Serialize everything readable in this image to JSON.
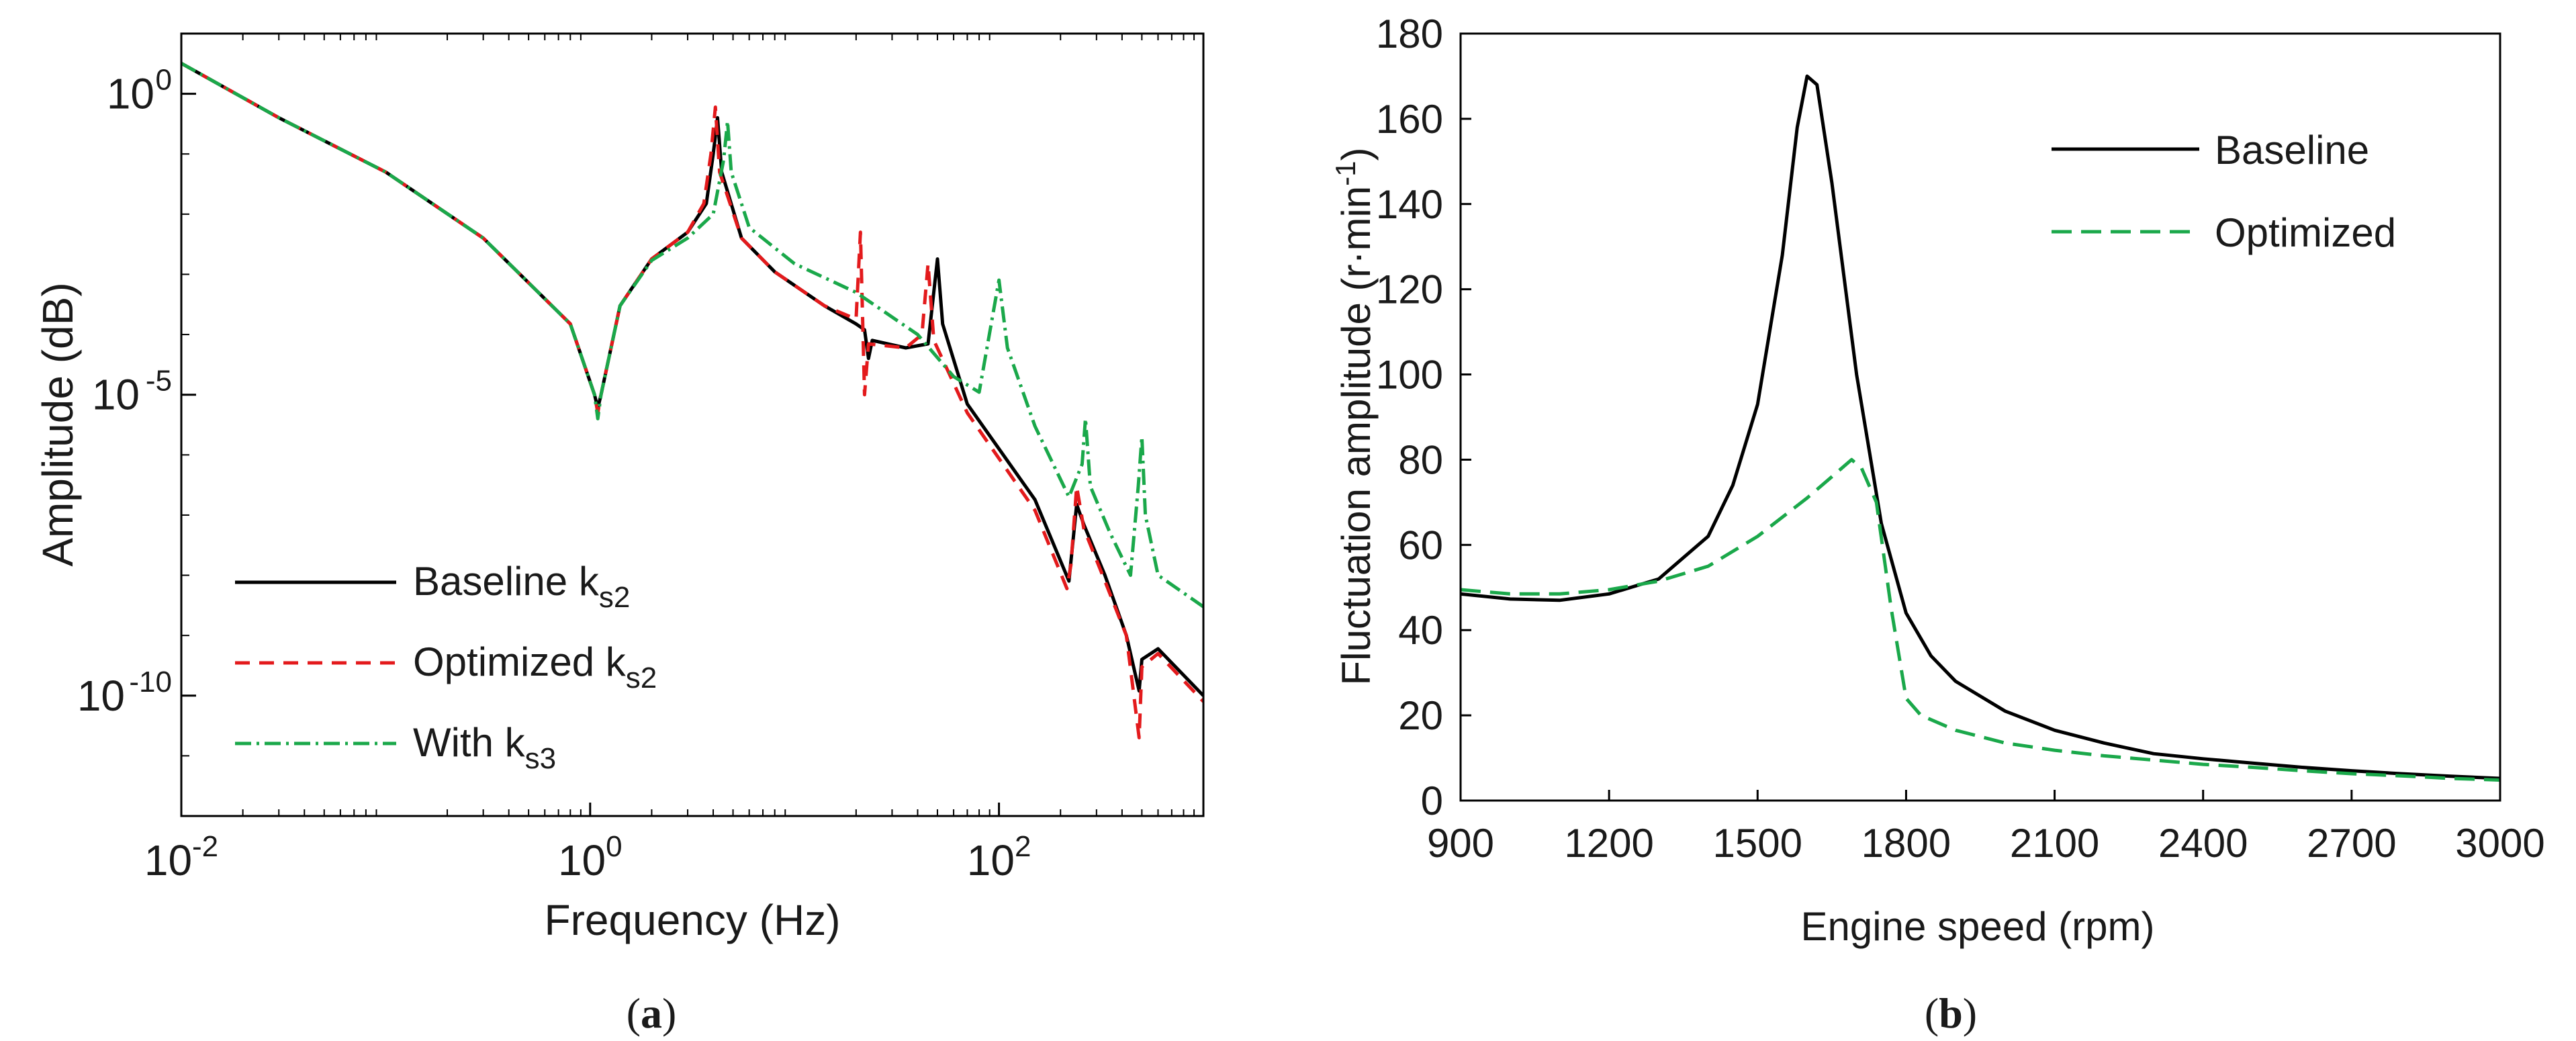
{
  "chart_data": [
    {
      "type": "line",
      "panel_label": {
        "open": "(",
        "letter": "a",
        "close": ")"
      },
      "xlabel": "Frequency (Hz)",
      "ylabel": "Amplitude (dB)",
      "xscale": "log",
      "yscale": "log",
      "xlim": [
        0.01,
        1000
      ],
      "ylim": [
        1e-12,
        10
      ],
      "xticks": [
        {
          "value": 0.01,
          "base": "10",
          "exp": "-2"
        },
        {
          "value": 1,
          "base": "10",
          "exp": "0"
        },
        {
          "value": 100,
          "base": "10",
          "exp": "2"
        }
      ],
      "yticks": [
        {
          "value": 1e-10,
          "base": "10",
          "exp": "-10"
        },
        {
          "value": 1e-05,
          "base": "10",
          "exp": "-5"
        },
        {
          "value": 1,
          "base": "10",
          "exp": "0"
        }
      ],
      "legend_position": "bottom-left",
      "series": [
        {
          "name": "Baseline k",
          "sub": "s2",
          "color": "#000000",
          "dash": "",
          "points": [
            [
              0.01,
              3.2
            ],
            [
              0.03,
              0.4
            ],
            [
              0.1,
              0.05
            ],
            [
              0.3,
              0.004
            ],
            [
              0.8,
              0.00015
            ],
            [
              1.05,
              1e-05
            ],
            [
              1.09,
              6e-06
            ],
            [
              1.13,
              1e-05
            ],
            [
              1.4,
              0.0003
            ],
            [
              2,
              0.0018
            ],
            [
              3,
              0.005
            ],
            [
              3.7,
              0.015
            ],
            [
              4.0,
              0.1
            ],
            [
              4.2,
              0.4
            ],
            [
              4.4,
              0.05
            ],
            [
              5.5,
              0.004
            ],
            [
              8,
              0.0011
            ],
            [
              14,
              0.0003
            ],
            [
              20,
              0.00015
            ],
            [
              22,
              0.00012
            ],
            [
              23,
              4e-05
            ],
            [
              24,
              8e-05
            ],
            [
              35,
              6e-05
            ],
            [
              45,
              7e-05
            ],
            [
              50,
              0.0018
            ],
            [
              53,
              0.00015
            ],
            [
              70,
              7e-06
            ],
            [
              150,
              1.8e-07
            ],
            [
              220,
              8e-09
            ],
            [
              240,
              1.5e-07
            ],
            [
              260,
              7e-08
            ],
            [
              330,
              1e-08
            ],
            [
              420,
              1e-09
            ],
            [
              485,
              1.2e-10
            ],
            [
              500,
              4e-10
            ],
            [
              600,
              6e-10
            ],
            [
              1000,
              1e-10
            ]
          ]
        },
        {
          "name": "Optimized k",
          "sub": "s2",
          "color": "#e31a1c",
          "dash": "22 14",
          "points": [
            [
              0.01,
              3.2
            ],
            [
              0.03,
              0.4
            ],
            [
              0.1,
              0.05
            ],
            [
              0.3,
              0.004
            ],
            [
              0.8,
              0.00015
            ],
            [
              1.05,
              1e-05
            ],
            [
              1.09,
              5e-06
            ],
            [
              1.13,
              1e-05
            ],
            [
              1.4,
              0.0003
            ],
            [
              2,
              0.0018
            ],
            [
              3,
              0.005
            ],
            [
              3.6,
              0.015
            ],
            [
              3.9,
              0.1
            ],
            [
              4.1,
              0.6
            ],
            [
              4.3,
              0.05
            ],
            [
              5.5,
              0.004
            ],
            [
              8,
              0.0011
            ],
            [
              14,
              0.0003
            ],
            [
              20,
              0.00018
            ],
            [
              21,
              0.005
            ],
            [
              22,
              1e-05
            ],
            [
              23,
              7e-05
            ],
            [
              35,
              6e-05
            ],
            [
              42,
              0.0001
            ],
            [
              45,
              0.0015
            ],
            [
              48,
              8e-05
            ],
            [
              70,
              5e-06
            ],
            [
              150,
              1.2e-07
            ],
            [
              215,
              6e-09
            ],
            [
              225,
              1.5e-08
            ],
            [
              240,
              3e-07
            ],
            [
              260,
              6e-08
            ],
            [
              330,
              8e-09
            ],
            [
              420,
              1e-09
            ],
            [
              485,
              2e-11
            ],
            [
              500,
              3e-10
            ],
            [
              600,
              5e-10
            ],
            [
              1000,
              8e-11
            ]
          ]
        },
        {
          "name": "With k",
          "sub": "s3",
          "color": "#1aa84a",
          "dash": "24 8 4 8",
          "points": [
            [
              0.01,
              3.2
            ],
            [
              0.03,
              0.4
            ],
            [
              0.1,
              0.05
            ],
            [
              0.3,
              0.004
            ],
            [
              0.8,
              0.00015
            ],
            [
              1.05,
              1e-05
            ],
            [
              1.09,
              4e-06
            ],
            [
              1.13,
              1e-05
            ],
            [
              1.4,
              0.0003
            ],
            [
              2,
              0.0017
            ],
            [
              3,
              0.004
            ],
            [
              4,
              0.01
            ],
            [
              4.5,
              0.08
            ],
            [
              4.7,
              0.35
            ],
            [
              4.9,
              0.05
            ],
            [
              6,
              0.006
            ],
            [
              10,
              0.0015
            ],
            [
              20,
              0.0005
            ],
            [
              40,
              0.0001
            ],
            [
              60,
              2e-05
            ],
            [
              80,
              1.1e-05
            ],
            [
              95,
              0.0003
            ],
            [
              100,
              0.0008
            ],
            [
              110,
              6e-05
            ],
            [
              150,
              3e-06
            ],
            [
              220,
              2e-07
            ],
            [
              255,
              7e-07
            ],
            [
              265,
              4e-06
            ],
            [
              280,
              3e-07
            ],
            [
              350,
              5e-08
            ],
            [
              440,
              1e-08
            ],
            [
              480,
              3e-07
            ],
            [
              500,
              2e-06
            ],
            [
              520,
              1e-07
            ],
            [
              600,
              1e-08
            ],
            [
              1000,
              3e-09
            ]
          ]
        }
      ]
    },
    {
      "type": "line",
      "panel_label": {
        "open": "(",
        "letter": "b",
        "close": ")"
      },
      "xlabel": "Engine speed (rpm)",
      "ylabel": {
        "text": "Fluctuation amplitude (r·min",
        "sup": "-1",
        "close": ")"
      },
      "xlim": [
        900,
        3000
      ],
      "ylim": [
        0,
        180
      ],
      "xticks": [
        900,
        1200,
        1500,
        1800,
        2100,
        2400,
        2700,
        3000
      ],
      "yticks": [
        0,
        20,
        40,
        60,
        80,
        100,
        120,
        140,
        160,
        180
      ],
      "legend_position": "top-right",
      "series": [
        {
          "name": "Baseline",
          "color": "#000000",
          "dash": "",
          "points": [
            [
              900,
              48.5
            ],
            [
              1000,
              47.3
            ],
            [
              1100,
              47
            ],
            [
              1200,
              48.5
            ],
            [
              1300,
              52
            ],
            [
              1400,
              62
            ],
            [
              1450,
              74
            ],
            [
              1500,
              93
            ],
            [
              1550,
              128
            ],
            [
              1580,
              158
            ],
            [
              1600,
              170
            ],
            [
              1620,
              168
            ],
            [
              1650,
              145
            ],
            [
              1700,
              100
            ],
            [
              1750,
              65
            ],
            [
              1800,
              44
            ],
            [
              1850,
              34
            ],
            [
              1900,
              28
            ],
            [
              2000,
              21
            ],
            [
              2100,
              16.5
            ],
            [
              2200,
              13.5
            ],
            [
              2300,
              11
            ],
            [
              2400,
              9.8
            ],
            [
              2500,
              8.8
            ],
            [
              2600,
              7.8
            ],
            [
              2700,
              7
            ],
            [
              2800,
              6.3
            ],
            [
              2900,
              5.7
            ],
            [
              3000,
              5.2
            ]
          ]
        },
        {
          "name": "Optimized",
          "color": "#1aa84a",
          "dash": "30 14",
          "points": [
            [
              900,
              49.5
            ],
            [
              1000,
              48.5
            ],
            [
              1100,
              48.5
            ],
            [
              1200,
              49.5
            ],
            [
              1300,
              51.5
            ],
            [
              1400,
              55
            ],
            [
              1500,
              62
            ],
            [
              1600,
              71
            ],
            [
              1650,
              76
            ],
            [
              1690,
              80
            ],
            [
              1710,
              78
            ],
            [
              1740,
              70
            ],
            [
              1770,
              45
            ],
            [
              1800,
              24
            ],
            [
              1830,
              20
            ],
            [
              1900,
              16.5
            ],
            [
              2000,
              13.5
            ],
            [
              2100,
              11.8
            ],
            [
              2200,
              10.5
            ],
            [
              2300,
              9.5
            ],
            [
              2400,
              8.5
            ],
            [
              2500,
              7.8
            ],
            [
              2600,
              7
            ],
            [
              2700,
              6.3
            ],
            [
              2800,
              5.8
            ],
            [
              2900,
              5.2
            ],
            [
              3000,
              4.8
            ]
          ]
        }
      ]
    }
  ]
}
